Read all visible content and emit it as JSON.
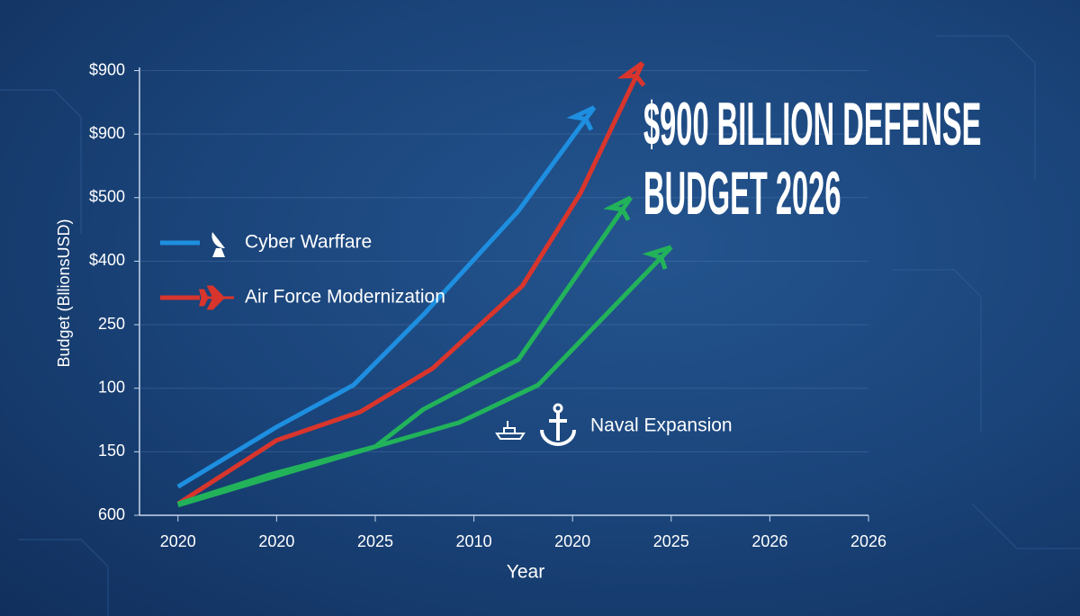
{
  "chart_data": {
    "type": "line",
    "title": "$900 BILLION DEFENSE BUDGET 2026",
    "y_label": "Budget (BllionsUSD)",
    "x_label": "Year",
    "xlim": [
      -0.39,
      7
    ],
    "ylim": [
      0,
      7.05
    ],
    "xticks": [
      {
        "value": 0,
        "label": "2020"
      },
      {
        "value": 1,
        "label": "2020"
      },
      {
        "value": 2,
        "label": "2025"
      },
      {
        "value": 3,
        "label": "2010"
      },
      {
        "value": 4,
        "label": "2020"
      },
      {
        "value": 5,
        "label": "2025"
      },
      {
        "value": 6,
        "label": "2026"
      },
      {
        "value": 7,
        "label": "2026"
      }
    ],
    "yticks": [
      {
        "value": 0,
        "label": "600"
      },
      {
        "value": 1,
        "label": "150"
      },
      {
        "value": 2,
        "label": "100"
      },
      {
        "value": 3,
        "label": "250"
      },
      {
        "value": 4,
        "label": "$400"
      },
      {
        "value": 5,
        "label": "$500"
      },
      {
        "value": 6,
        "label": "$900"
      },
      {
        "value": 7,
        "label": "$900"
      }
    ],
    "grid": true,
    "series": [
      {
        "name": "Cyber Warffare",
        "color": "#1e8fe0",
        "x": [
          0,
          1.0,
          1.78,
          2.49,
          3.45,
          4.22
        ],
        "values": [
          0.45,
          1.39,
          2.05,
          3.16,
          4.79,
          6.42
        ]
      },
      {
        "name": "Air Force Modernization",
        "color": "#d9352c",
        "x": [
          0,
          1.0,
          1.85,
          2.58,
          3.49,
          4.08,
          4.71
        ],
        "values": [
          0.18,
          1.18,
          1.63,
          2.31,
          3.61,
          5.07,
          7.12
        ]
      },
      {
        "color": "#22b35a",
        "x": [
          0,
          0.93,
          2.0,
          2.49,
          3.45,
          4.59
        ],
        "values": [
          0.18,
          0.64,
          1.08,
          1.67,
          2.45,
          5.0
        ]
      },
      {
        "name": "Naval Expansion",
        "color": "#22b35a",
        "x": [
          0,
          2.0,
          2.85,
          3.65,
          5.0
        ],
        "values": [
          0.16,
          1.08,
          1.46,
          2.05,
          4.22
        ]
      }
    ]
  }
}
